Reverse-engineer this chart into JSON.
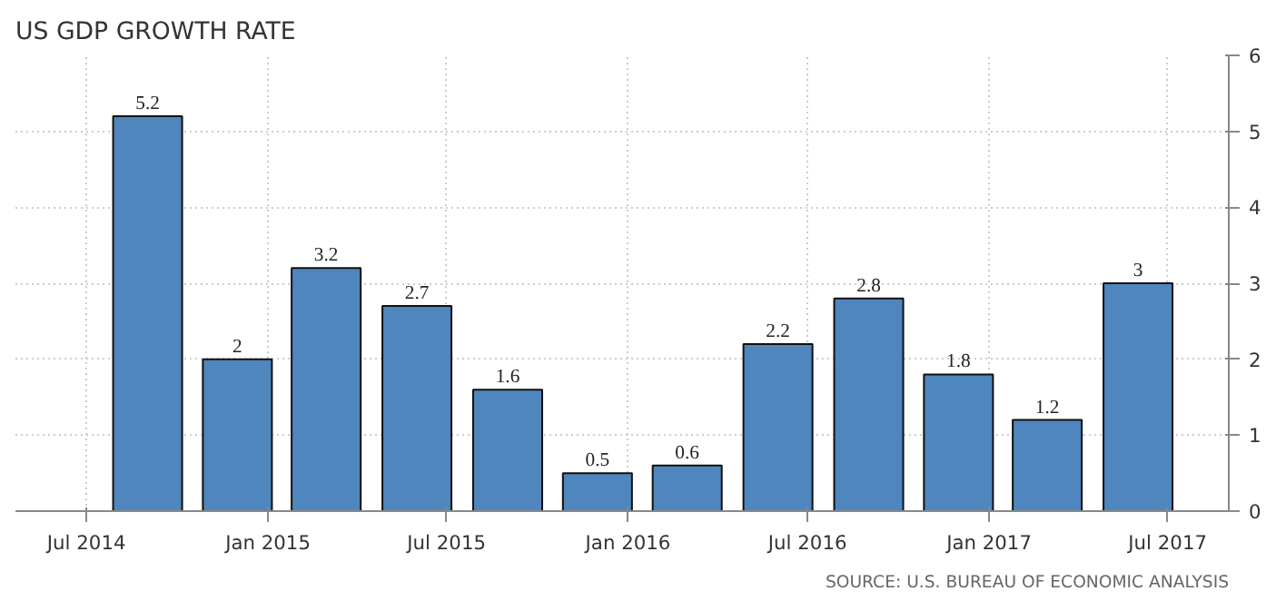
{
  "chart_data": {
    "type": "bar",
    "title": "US GDP GROWTH RATE",
    "x": [
      "2014-09",
      "2014-12",
      "2015-03",
      "2015-06",
      "2015-09",
      "2015-12",
      "2016-03",
      "2016-06",
      "2016-09",
      "2016-12",
      "2017-03",
      "2017-06"
    ],
    "values": [
      5.2,
      2,
      3.2,
      2.7,
      1.6,
      0.5,
      0.6,
      2.2,
      2.8,
      1.8,
      1.2,
      3
    ],
    "color": "#4f86bd",
    "data_labels": true,
    "xlim": [
      "2014-04-20",
      "2017-09-01"
    ],
    "xticks": [
      {
        "value": "2014-07",
        "label": "Jul 2014"
      },
      {
        "value": "2015-01",
        "label": "Jan 2015"
      },
      {
        "value": "2015-07",
        "label": "Jul 2015"
      },
      {
        "value": "2016-01",
        "label": "Jan 2016"
      },
      {
        "value": "2016-07",
        "label": "Jul 2016"
      },
      {
        "value": "2017-01",
        "label": "Jan 2017"
      },
      {
        "value": "2017-07",
        "label": "Jul 2017"
      }
    ],
    "ylim": [
      0,
      6
    ],
    "yticks": [
      0,
      1,
      2,
      3,
      4,
      5,
      6
    ],
    "grid": true,
    "annotations": [
      "SOURCE: U.S. BUREAU OF ECONOMIC ANALYSIS"
    ]
  }
}
